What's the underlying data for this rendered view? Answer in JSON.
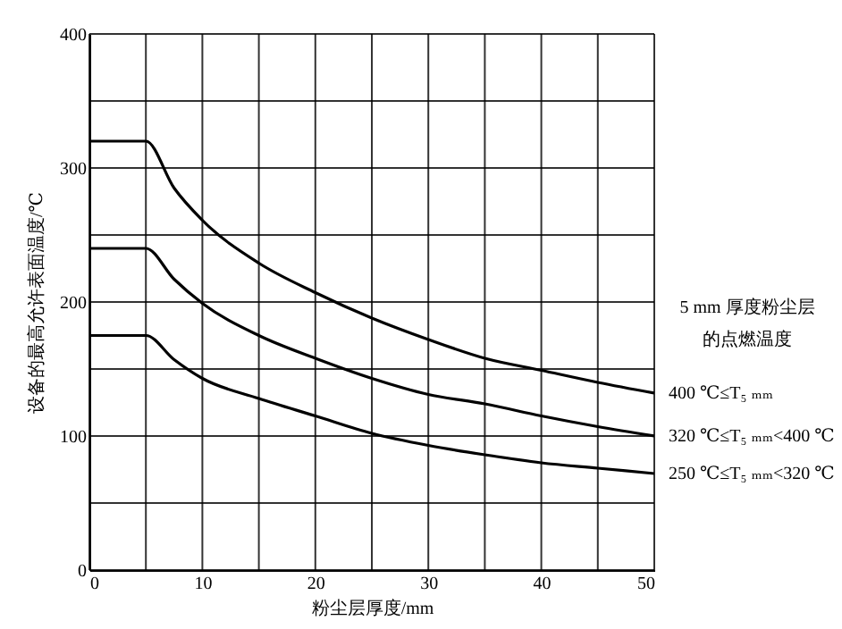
{
  "chart_data": {
    "type": "line",
    "xlabel": "粉尘层厚度/mm",
    "ylabel": "设备的最高允许表面温度/℃",
    "legend_title": "5 mm 厚度粉尘层的点燃温度",
    "legend": "right",
    "grid": true,
    "marker": "none",
    "line_style": "solid",
    "x": [
      0,
      5,
      7.5,
      10,
      15,
      20,
      25,
      30,
      35,
      40,
      45,
      50
    ],
    "xlim": [
      0,
      50
    ],
    "ylim": [
      0,
      400
    ],
    "xticks": [
      0,
      {
        "value": 5,
        "label": null
      },
      10,
      {
        "value": 15,
        "label": null
      },
      20,
      {
        "value": 25,
        "label": null
      },
      30,
      {
        "value": 35,
        "label": null
      },
      40,
      {
        "value": 45,
        "label": null
      },
      50
    ],
    "yticks": [
      0,
      {
        "value": 50,
        "label": null
      },
      100,
      {
        "value": 150,
        "label": null
      },
      200,
      {
        "value": 250,
        "label": null
      },
      300,
      {
        "value": 350,
        "label": null
      },
      400
    ],
    "series": [
      {
        "name": "400 ℃≤T₅ ₘₘ",
        "color": "#000000",
        "values": [
          320,
          320,
          285,
          261,
          229,
          207,
          188,
          172,
          158,
          149,
          140,
          132
        ]
      },
      {
        "name": "320 ℃≤T₅ ₘₘ<400 ℃",
        "color": "#000000",
        "values": [
          240,
          240,
          217,
          199,
          175,
          158,
          143,
          131,
          124,
          115,
          107,
          100
        ]
      },
      {
        "name": "250 ℃≤T₅ ₘₘ<320 ℃",
        "color": "#000000",
        "values": [
          175,
          175,
          157,
          143,
          128,
          115,
          102,
          93,
          86,
          80,
          76,
          72
        ]
      }
    ]
  }
}
